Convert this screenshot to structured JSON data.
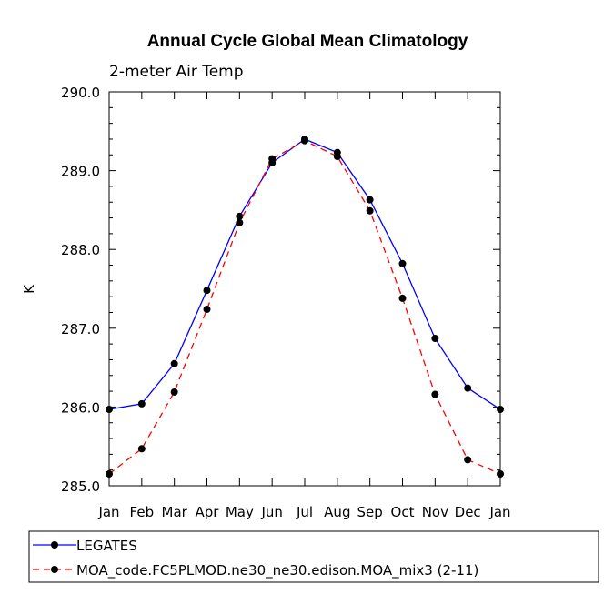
{
  "chart_data": {
    "type": "line",
    "title": "Annual Cycle Global Mean Climatology",
    "subtitle": "2-meter Air Temp",
    "ylabel": "K",
    "xlabel": "",
    "categories": [
      "Jan",
      "Feb",
      "Mar",
      "Apr",
      "May",
      "Jun",
      "Jul",
      "Aug",
      "Sep",
      "Oct",
      "Nov",
      "Dec",
      "Jan"
    ],
    "ylim": [
      285.0,
      290.0
    ],
    "yticks": [
      "285.0",
      "286.0",
      "287.0",
      "288.0",
      "289.0",
      "290.0"
    ],
    "series": [
      {
        "name": "LEGATES",
        "color": "#0000ff",
        "dash": "solid",
        "values": [
          285.97,
          286.04,
          286.55,
          287.48,
          288.42,
          289.1,
          289.4,
          289.23,
          288.63,
          287.82,
          286.87,
          286.24,
          285.97
        ]
      },
      {
        "name": "MOA_code.FC5PLMOD.ne30_ne30.edison.MOA_mix3 (2-11)",
        "color": "#ff0000",
        "dash": "dashed",
        "values": [
          285.15,
          285.47,
          286.19,
          287.24,
          288.34,
          289.15,
          289.38,
          289.18,
          288.49,
          287.38,
          286.16,
          285.33,
          285.15
        ]
      }
    ]
  }
}
